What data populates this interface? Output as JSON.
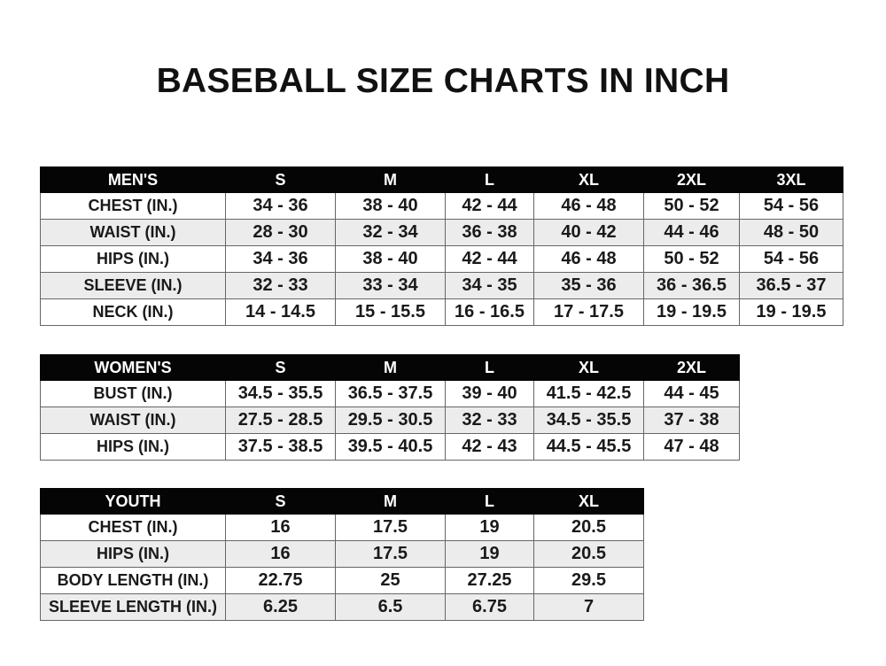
{
  "title": "BASEBALL SIZE CHARTS IN INCH",
  "mens": {
    "header": [
      "MEN'S",
      "S",
      "M",
      "L",
      "XL",
      "2XL",
      "3XL"
    ],
    "rows": [
      [
        "CHEST (IN.)",
        "34 - 36",
        "38 - 40",
        "42 - 44",
        "46 - 48",
        "50 - 52",
        "54 - 56"
      ],
      [
        "WAIST (IN.)",
        "28 - 30",
        "32 - 34",
        "36 - 38",
        "40 - 42",
        "44 - 46",
        "48 - 50"
      ],
      [
        "HIPS (IN.)",
        "34 - 36",
        "38 - 40",
        "42 - 44",
        "46 - 48",
        "50 - 52",
        "54 - 56"
      ],
      [
        "SLEEVE (IN.)",
        "32 - 33",
        "33 - 34",
        "34 - 35",
        "35 - 36",
        "36 - 36.5",
        "36.5 - 37"
      ],
      [
        "NECK (IN.)",
        "14 - 14.5",
        "15 - 15.5",
        "16 - 16.5",
        "17 - 17.5",
        "19 - 19.5",
        "19 - 19.5"
      ]
    ]
  },
  "womens": {
    "header": [
      "WOMEN'S",
      "S",
      "M",
      "L",
      "XL",
      "2XL"
    ],
    "rows": [
      [
        "BUST (IN.)",
        "34.5 - 35.5",
        "36.5 - 37.5",
        "39 - 40",
        "41.5 - 42.5",
        "44 - 45"
      ],
      [
        "WAIST (IN.)",
        "27.5 - 28.5",
        "29.5 - 30.5",
        "32 - 33",
        "34.5 - 35.5",
        "37 - 38"
      ],
      [
        "HIPS (IN.)",
        "37.5 - 38.5",
        "39.5 - 40.5",
        "42 - 43",
        "44.5 - 45.5",
        "47 - 48"
      ]
    ]
  },
  "youth": {
    "header": [
      "YOUTH",
      "S",
      "M",
      "L",
      "XL"
    ],
    "rows": [
      [
        "CHEST (IN.)",
        "16",
        "17.5",
        "19",
        "20.5"
      ],
      [
        "HIPS (IN.)",
        "16",
        "17.5",
        "19",
        "20.5"
      ],
      [
        "BODY LENGTH (IN.)",
        "22.75",
        "25",
        "27.25",
        "29.5"
      ],
      [
        "SLEEVE LENGTH (IN.)",
        "6.25",
        "6.5",
        "6.75",
        "7"
      ]
    ]
  }
}
